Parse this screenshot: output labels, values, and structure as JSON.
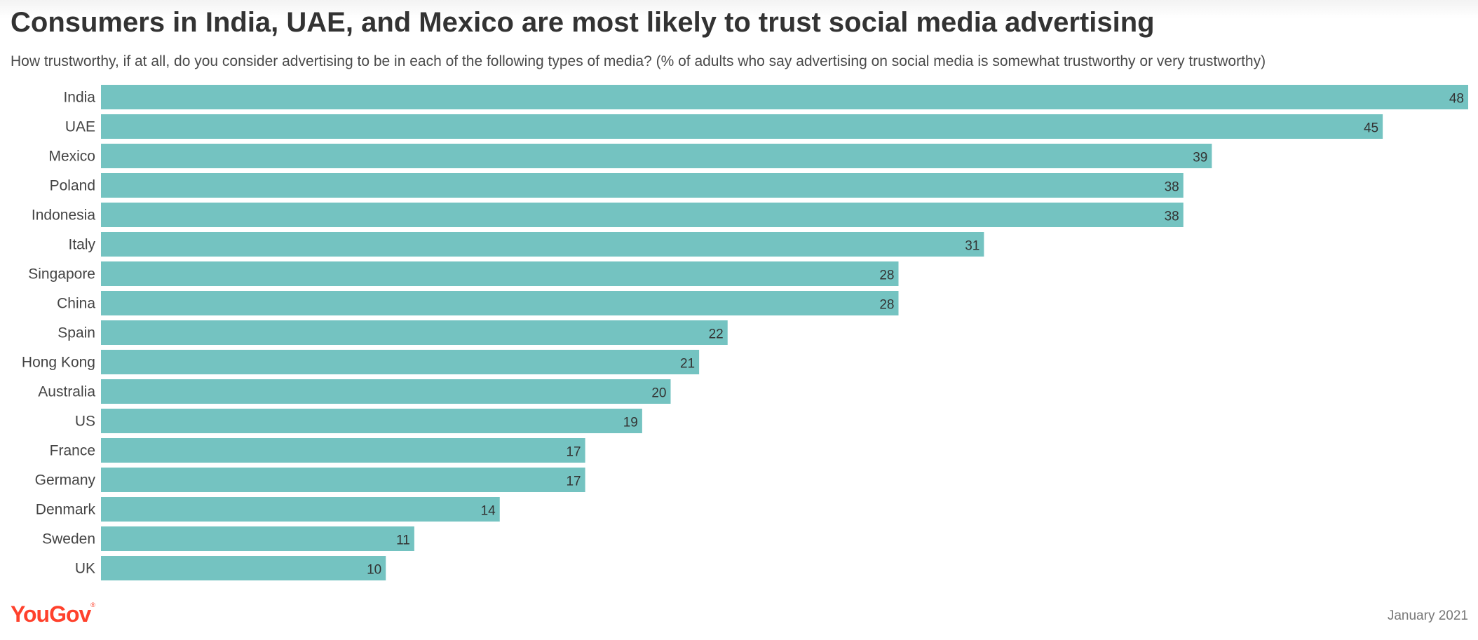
{
  "chart_data": {
    "type": "bar",
    "orientation": "horizontal",
    "title": "Consumers in India, UAE, and Mexico are most likely to trust social media advertising",
    "subtitle": "How trustworthy, if at all, do you consider advertising to be in each of the following types of media? (% of adults who say advertising on social media is somewhat trustworthy or very trustworthy)",
    "categories": [
      "India",
      "UAE",
      "Mexico",
      "Poland",
      "Indonesia",
      "Italy",
      "Singapore",
      "China",
      "Spain",
      "Hong Kong",
      "Australia",
      "US",
      "France",
      "Germany",
      "Denmark",
      "Sweden",
      "UK"
    ],
    "values": [
      48,
      45,
      39,
      38,
      38,
      31,
      28,
      28,
      22,
      21,
      20,
      19,
      17,
      17,
      14,
      11,
      10
    ],
    "xlim": [
      0,
      48
    ],
    "xlabel": "",
    "ylabel": "",
    "grid": false,
    "bar_color": "#74c3c1"
  },
  "footer": {
    "brand": "YouGov",
    "brand_mark": "®",
    "brand_color": "#ff412c",
    "date": "January 2021"
  }
}
